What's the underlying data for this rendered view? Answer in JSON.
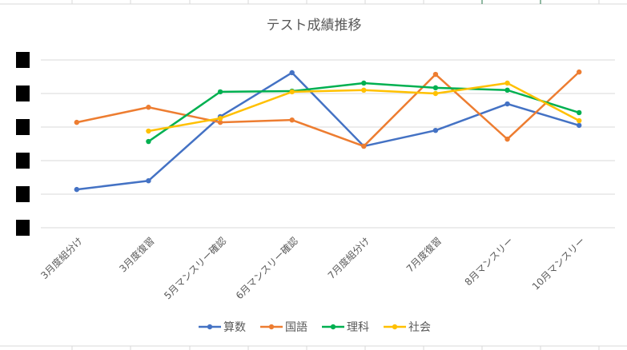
{
  "chart_data": {
    "type": "line",
    "title": "テスト成績推移",
    "categories": [
      "3月度組分け",
      "3月度復習",
      "5月マンスリー確認",
      "6月マンスリー確認",
      "7月度組分け",
      "7月度復習",
      "8月マンスリー",
      "10月マンスリー"
    ],
    "series": [
      {
        "name": "算数",
        "color": "#4472C4",
        "values": [
          11.4,
          14.0,
          33.1,
          46.2,
          24.3,
          29.0,
          36.9,
          30.5
        ]
      },
      {
        "name": "国語",
        "color": "#ED7D31",
        "values": [
          31.4,
          35.9,
          31.4,
          32.1,
          24.3,
          45.7,
          26.4,
          46.4
        ]
      },
      {
        "name": "理科",
        "color": "#00B050",
        "values": [
          null,
          25.7,
          40.5,
          40.7,
          43.1,
          41.7,
          41.0,
          34.3
        ]
      },
      {
        "name": "社会",
        "color": "#FFC000",
        "values": [
          null,
          28.8,
          32.6,
          40.5,
          41.0,
          40.0,
          43.1,
          31.9
        ]
      }
    ],
    "y_tick_labels_redacted": true,
    "ylim": [
      0,
      50
    ],
    "gridlines": "horizontal",
    "legend_position": "bottom",
    "xlabel": "",
    "ylabel": ""
  }
}
